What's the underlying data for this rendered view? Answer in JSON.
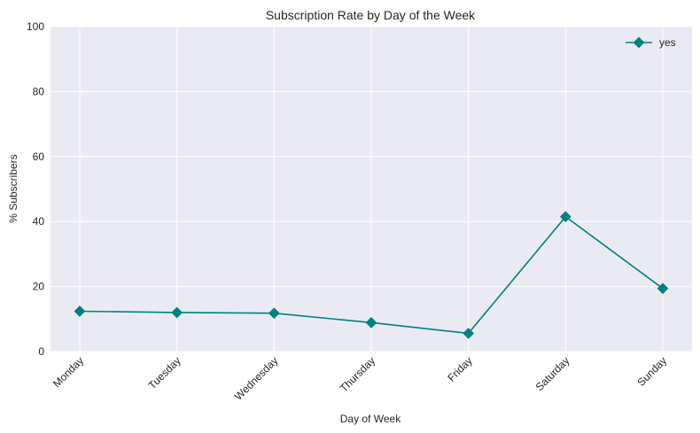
{
  "chart_data": {
    "type": "line",
    "title": "Subscription Rate by Day of the Week",
    "xlabel": "Day of Week",
    "ylabel": "% Subscribers",
    "categories": [
      "Monday",
      "Tuesday",
      "Wednesday",
      "Thursday",
      "Friday",
      "Saturday",
      "Sunday"
    ],
    "series": [
      {
        "name": "yes",
        "values": [
          12.4,
          12.0,
          11.8,
          8.9,
          5.6,
          41.5,
          19.4
        ],
        "color": "#008080",
        "marker": "diamond"
      }
    ],
    "ylim": [
      0,
      100
    ],
    "yticks": [
      "0",
      "20",
      "40",
      "60",
      "80",
      "100"
    ],
    "grid": true,
    "legend_position": "top-right",
    "background": "#eaeaf2"
  }
}
